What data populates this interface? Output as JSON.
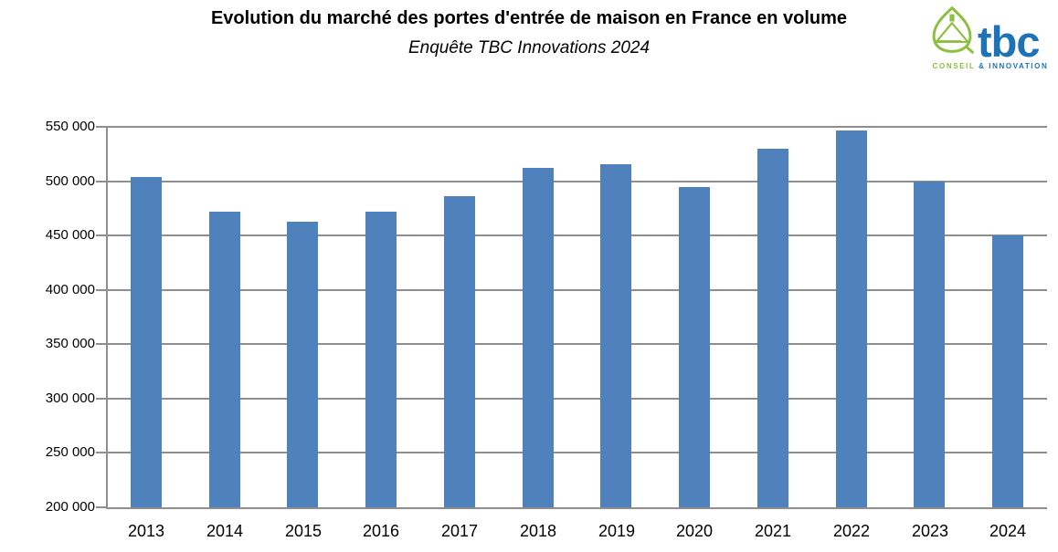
{
  "header": {
    "title": "Evolution du marché des portes d'entrée de maison en France en volume",
    "subtitle": "Enquête TBC Innovations 2024"
  },
  "logo": {
    "name": "tbc",
    "tagline_left": "CONSEIL",
    "tagline_right": "& INNOVATION",
    "green": "#8cbf3e",
    "blue": "#1f73b5"
  },
  "chart_data": {
    "type": "bar",
    "title": "Evolution du marché des portes d'entrée de maison en France en volume",
    "subtitle": "Enquête TBC Innovations 2024",
    "categories": [
      "2013",
      "2014",
      "2015",
      "2016",
      "2017",
      "2018",
      "2019",
      "2020",
      "2021",
      "2022",
      "2023",
      "2024"
    ],
    "values": [
      504000,
      472000,
      463000,
      472000,
      486000,
      512000,
      516000,
      495000,
      530000,
      547000,
      500000,
      450000
    ],
    "xlabel": "",
    "ylabel": "",
    "ylim": [
      200000,
      550000
    ],
    "ytick_step": 50000,
    "ytick_labels": [
      "200 000",
      "250 000",
      "300 000",
      "350 000",
      "400 000",
      "450 000",
      "500 000",
      "550 000"
    ],
    "bar_color": "#4f81bd",
    "grid_color": "#8e8e8e",
    "grid": true,
    "legend": false
  }
}
